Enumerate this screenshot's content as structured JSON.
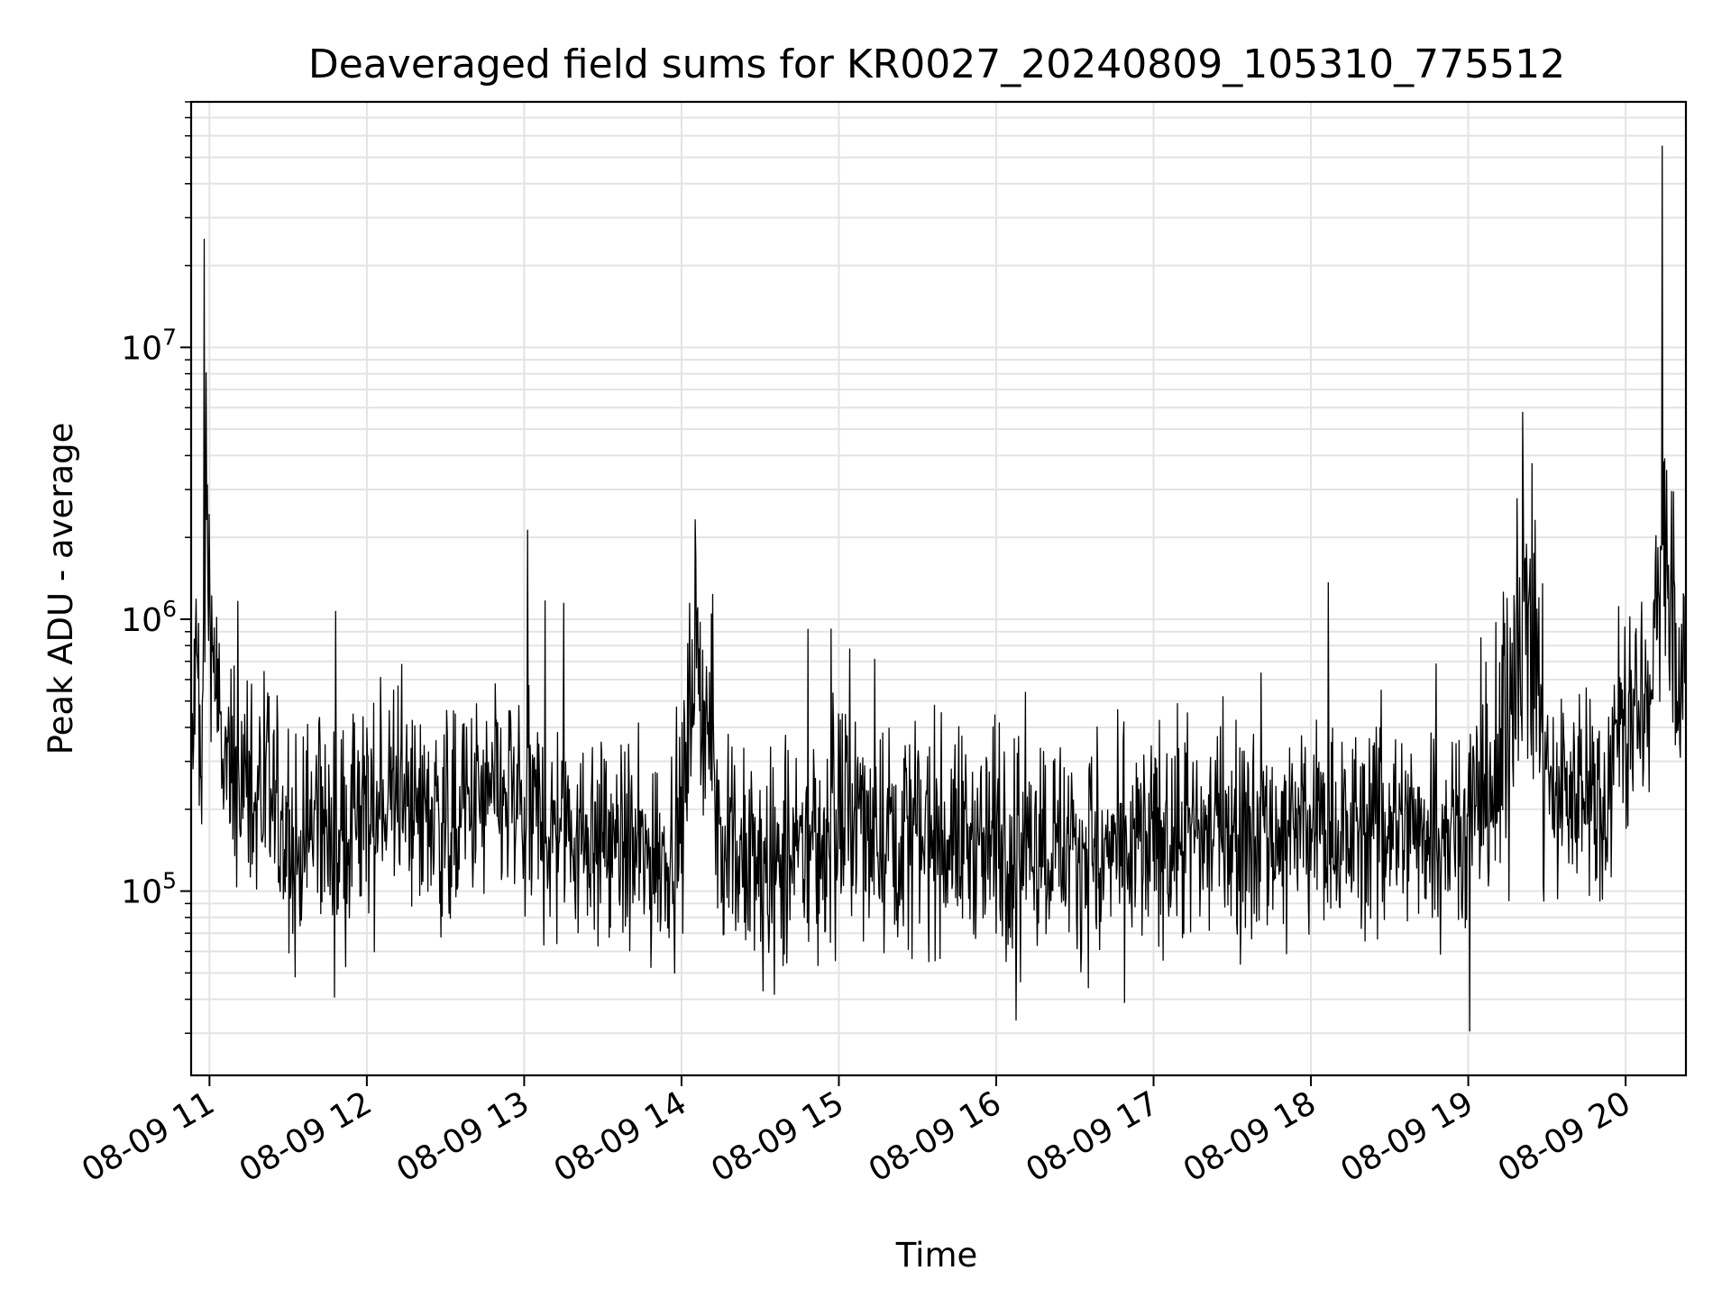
{
  "chart_data": {
    "type": "line",
    "title": "Deaveraged field sums for KR0027_20240809_105310_775512",
    "xlabel": "Time",
    "ylabel": "Peak ADU - average",
    "x_scale": "time",
    "y_scale": "log",
    "xlim": [
      "2024-08-09 10:53",
      "2024-08-09 20:23"
    ],
    "ylim": [
      21000,
      80000000
    ],
    "x_tick_labels": [
      "08-09 11",
      "08-09 12",
      "08-09 13",
      "08-09 14",
      "08-09 15",
      "08-09 16",
      "08-09 17",
      "08-09 18",
      "08-09 19",
      "08-09 20"
    ],
    "y_ticks": [
      {
        "value": 100000,
        "base": "10",
        "exp": "5"
      },
      {
        "value": 1000000,
        "base": "10",
        "exp": "6"
      },
      {
        "value": 10000000,
        "base": "10",
        "exp": "7"
      }
    ],
    "grid": true,
    "line_color": "#000000",
    "series": [
      {
        "x": [
          "2024-08-09 10:53",
          "2024-08-09 10:55",
          "2024-08-09 10:57",
          "2024-08-09 10:58",
          "2024-08-09 11:05",
          "2024-08-09 11:15",
          "2024-08-09 11:25",
          "2024-08-09 11:30",
          "2024-08-09 11:37",
          "2024-08-09 11:42",
          "2024-08-09 11:47",
          "2024-08-09 11:52",
          "2024-08-09 12:00",
          "2024-08-09 12:10",
          "2024-08-09 12:20",
          "2024-08-09 12:30",
          "2024-08-09 12:45",
          "2024-08-09 12:55",
          "2024-08-09 13:00",
          "2024-08-09 13:15",
          "2024-08-09 13:30",
          "2024-08-09 13:45",
          "2024-08-09 14:00",
          "2024-08-09 14:05",
          "2024-08-09 14:15",
          "2024-08-09 14:25",
          "2024-08-09 14:35",
          "2024-08-09 14:45",
          "2024-08-09 15:00",
          "2024-08-09 15:20",
          "2024-08-09 15:40",
          "2024-08-09 16:00",
          "2024-08-09 16:20",
          "2024-08-09 16:40",
          "2024-08-09 17:00",
          "2024-08-09 17:30",
          "2024-08-09 18:00",
          "2024-08-09 18:30",
          "2024-08-09 18:50",
          "2024-08-09 19:00",
          "2024-08-09 19:10",
          "2024-08-09 19:15",
          "2024-08-09 19:20",
          "2024-08-09 19:25",
          "2024-08-09 19:30",
          "2024-08-09 19:40",
          "2024-08-09 19:50",
          "2024-08-09 19:55",
          "2024-08-09 20:00",
          "2024-08-09 20:10",
          "2024-08-09 20:14",
          "2024-08-09 20:20",
          "2024-08-09 20:23"
        ],
        "values": [
          250000,
          700000,
          200000,
          25000000,
          280000,
          230000,
          200000,
          120000,
          150000,
          230000,
          130000,
          170000,
          190000,
          220000,
          200000,
          180000,
          210000,
          220000,
          190000,
          170000,
          160000,
          130000,
          160000,
          900000,
          170000,
          120000,
          110000,
          130000,
          190000,
          170000,
          160000,
          150000,
          160000,
          130000,
          150000,
          170000,
          165000,
          170000,
          180000,
          190000,
          240000,
          400000,
          1200000,
          800000,
          280000,
          220000,
          220000,
          300000,
          450000,
          500000,
          55000000,
          600000,
          650000
        ]
      }
    ]
  }
}
